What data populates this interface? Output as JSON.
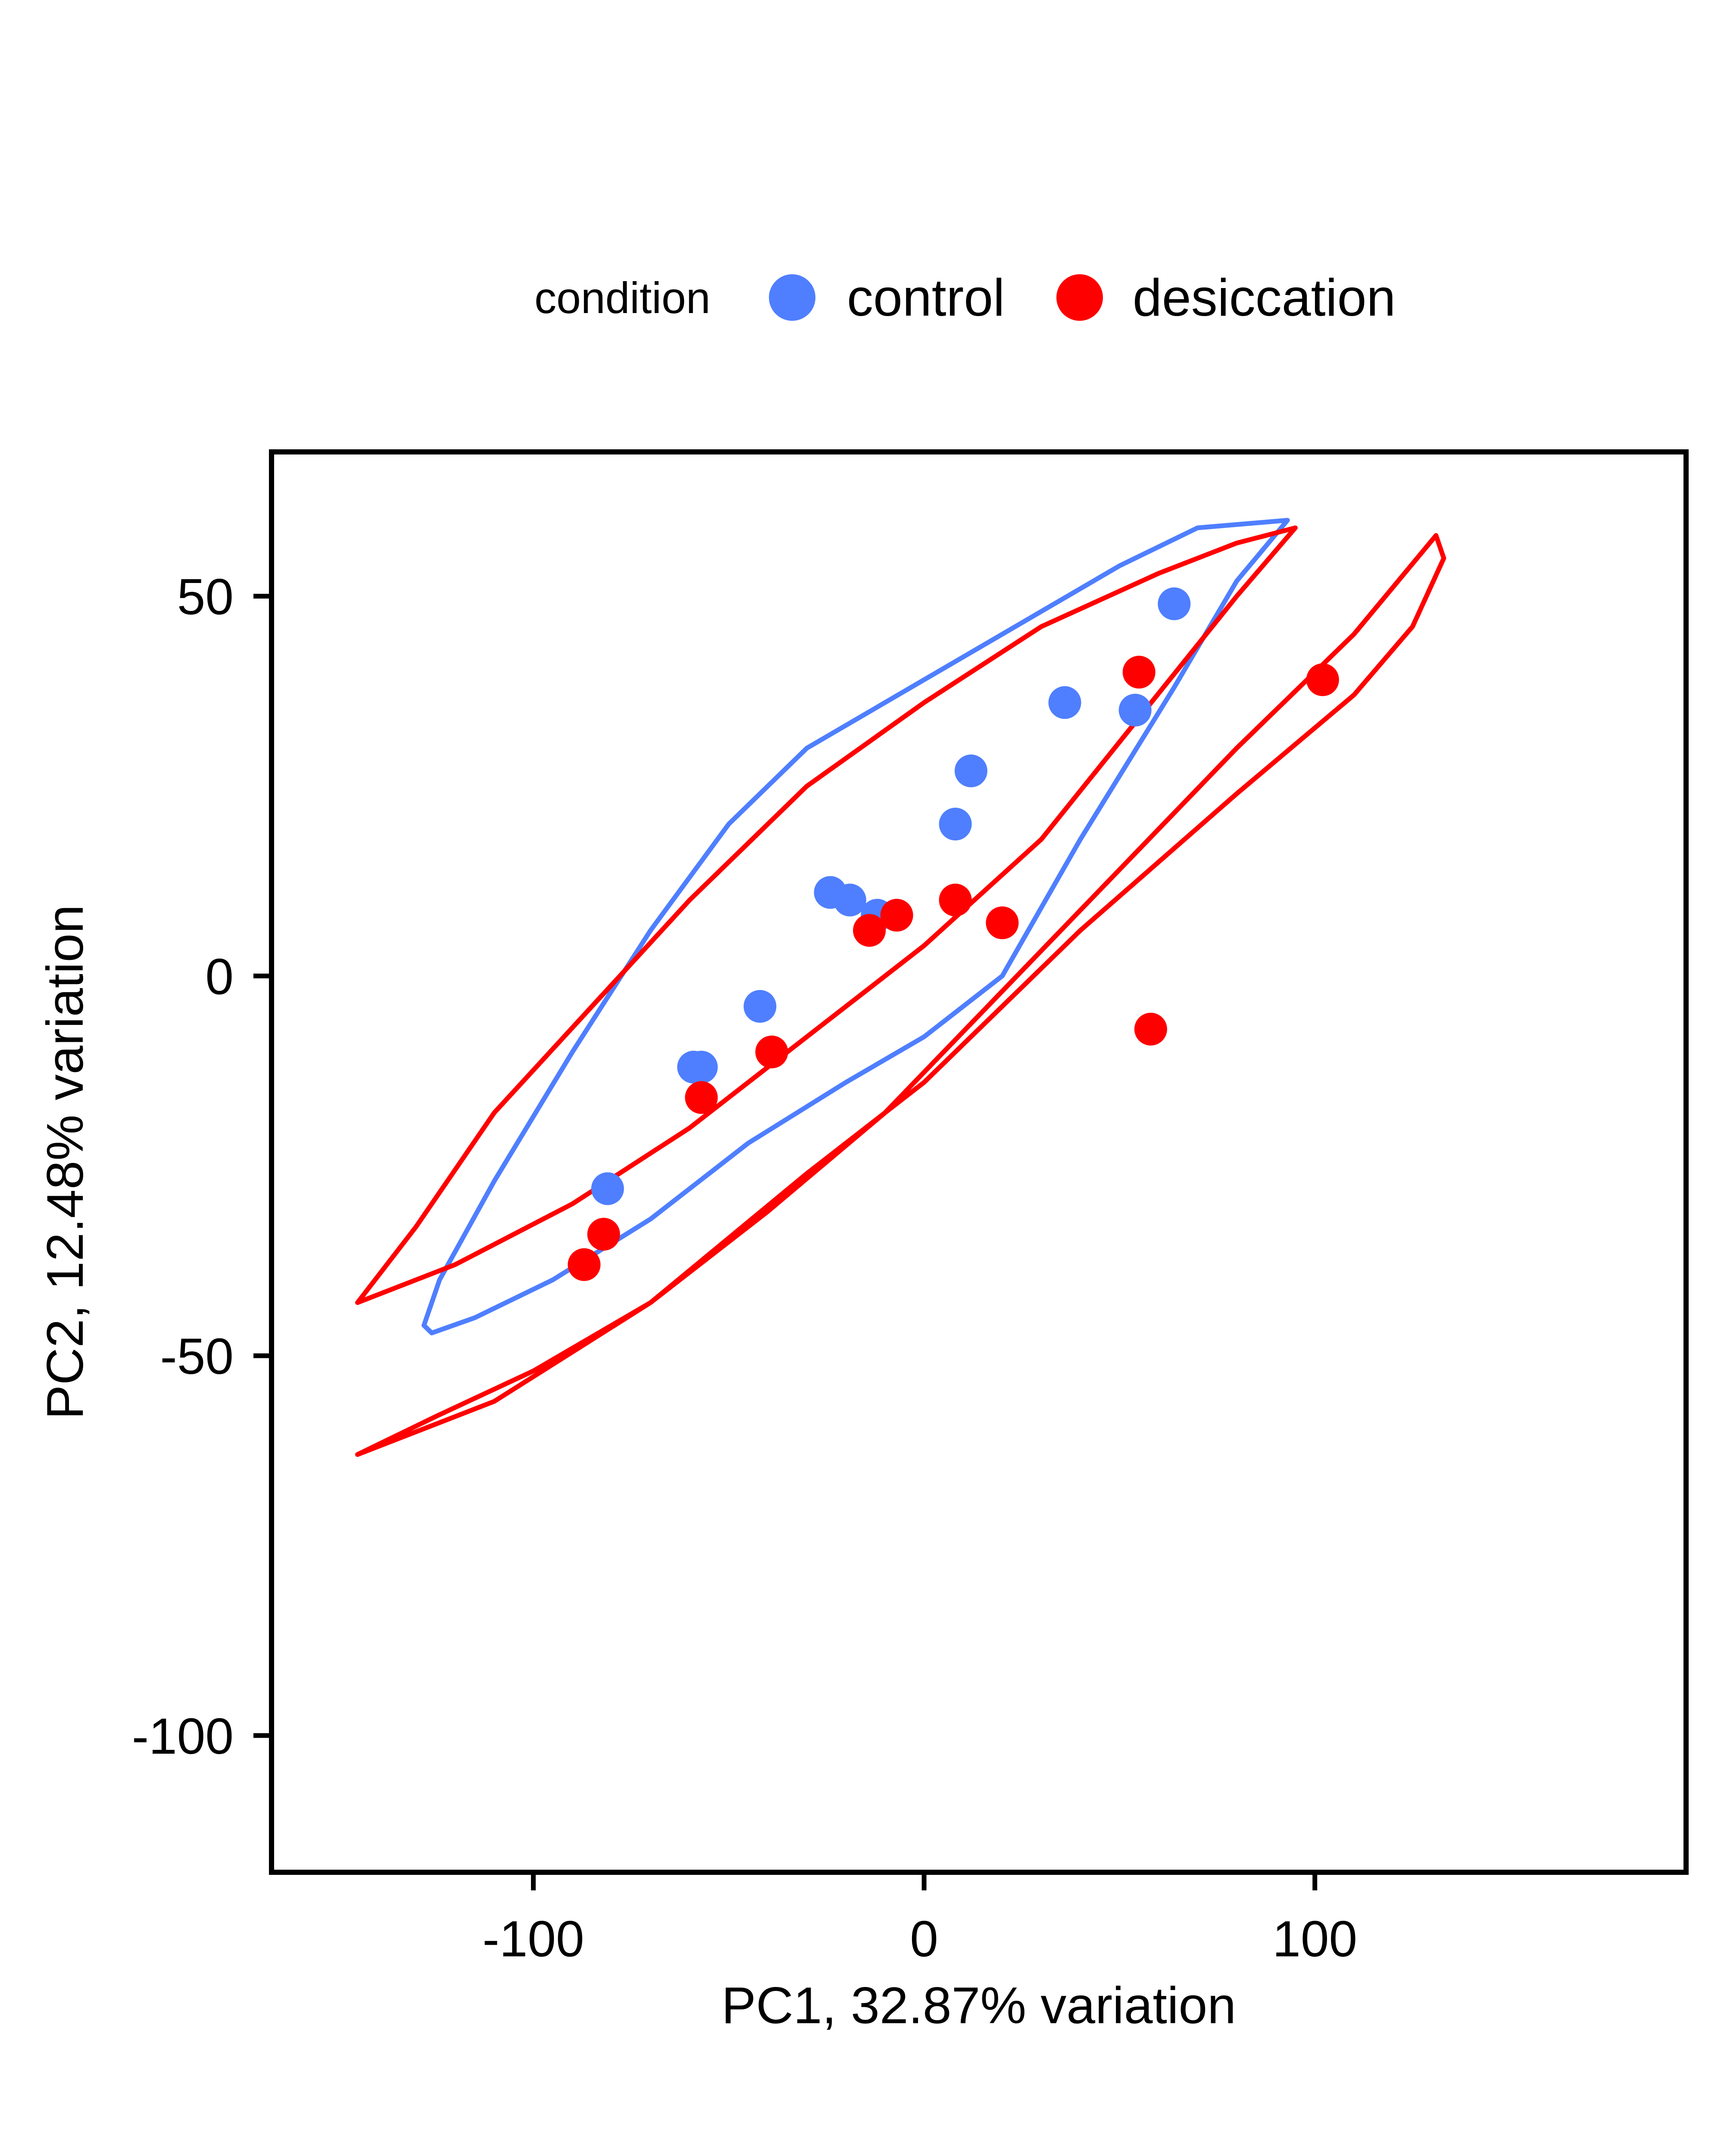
{
  "chart_data": {
    "type": "scatter",
    "title": "",
    "xlabel": "PC1, 32.87% variation",
    "ylabel": "PC2, 12.48% variation",
    "xlim": [
      -167,
      195
    ],
    "ylim": [
      -118,
      69
    ],
    "x_ticks": [
      {
        "value": -100,
        "label": "-100"
      },
      {
        "value": 0,
        "label": "0"
      },
      {
        "value": 100,
        "label": "100"
      }
    ],
    "y_ticks": [
      {
        "value": 50,
        "label": "50"
      },
      {
        "value": 0,
        "label": "0"
      },
      {
        "value": -50,
        "label": "-50"
      },
      {
        "value": -100,
        "label": "-100"
      }
    ],
    "grid": false,
    "legend": {
      "position": "top",
      "title": "condition",
      "entries": [
        {
          "key": "control",
          "label": "control",
          "color": "#4f7fff"
        },
        {
          "key": "desiccation",
          "label": "desiccation",
          "color": "#ff0000"
        }
      ]
    },
    "series": [
      {
        "name": "control",
        "color": "#4f7fff",
        "points": [
          [
            64,
            49
          ],
          [
            36,
            36
          ],
          [
            54,
            35
          ],
          [
            12,
            27
          ],
          [
            8,
            20
          ],
          [
            -24,
            11
          ],
          [
            -19,
            10
          ],
          [
            -12,
            8
          ],
          [
            -42,
            -4
          ],
          [
            -59,
            -12
          ],
          [
            -57,
            -12
          ],
          [
            -81,
            -28
          ]
        ]
      },
      {
        "name": "desiccation",
        "color": "#ff0000",
        "points": [
          [
            102,
            39
          ],
          [
            55,
            40
          ],
          [
            -7,
            8
          ],
          [
            -14,
            6
          ],
          [
            8,
            10
          ],
          [
            20,
            7
          ],
          [
            58,
            -7
          ],
          [
            -39,
            -10
          ],
          [
            -57,
            -16
          ],
          [
            -82,
            -34
          ],
          [
            -87,
            -38
          ]
        ]
      }
    ],
    "ellipses": [
      {
        "name": "control",
        "color": "#4f7fff",
        "points": [
          [
            -126,
            -47
          ],
          [
            -128,
            -46
          ],
          [
            -124,
            -40
          ],
          [
            -110,
            -27
          ],
          [
            -90,
            -10
          ],
          [
            -70,
            6
          ],
          [
            -50,
            20
          ],
          [
            -30,
            30
          ],
          [
            -10,
            36
          ],
          [
            10,
            42
          ],
          [
            30,
            48
          ],
          [
            50,
            54
          ],
          [
            70,
            59
          ],
          [
            93,
            60
          ],
          [
            80,
            52
          ],
          [
            64,
            38
          ],
          [
            40,
            18
          ],
          [
            20,
            0
          ],
          [
            0,
            -8
          ],
          [
            -20,
            -14
          ],
          [
            -45,
            -22
          ],
          [
            -70,
            -32
          ],
          [
            -95,
            -40
          ],
          [
            -115,
            -45
          ],
          [
            -126,
            -47
          ]
        ]
      },
      {
        "name": "desiccation",
        "color": "#ff0000",
        "points": [
          [
            -145,
            -43
          ],
          [
            -130,
            -33
          ],
          [
            -110,
            -18
          ],
          [
            -85,
            -4
          ],
          [
            -60,
            10
          ],
          [
            -30,
            25
          ],
          [
            0,
            36
          ],
          [
            30,
            46
          ],
          [
            60,
            53
          ],
          [
            80,
            57
          ],
          [
            95,
            59
          ],
          [
            80,
            50
          ],
          [
            55,
            34
          ],
          [
            30,
            18
          ],
          [
            0,
            4
          ],
          [
            -30,
            -8
          ],
          [
            -60,
            -20
          ],
          [
            -90,
            -30
          ],
          [
            -120,
            -38
          ],
          [
            -145,
            -43
          ]
        ]
      },
      {
        "name": "desiccation",
        "color": "#ff0000",
        "points": [
          [
            -145,
            -63
          ],
          [
            -110,
            -56
          ],
          [
            -70,
            -43
          ],
          [
            -30,
            -26
          ],
          [
            0,
            -14
          ],
          [
            40,
            6
          ],
          [
            80,
            24
          ],
          [
            110,
            37
          ],
          [
            125,
            46
          ],
          [
            133,
            55
          ],
          [
            131,
            58
          ],
          [
            110,
            45
          ],
          [
            80,
            30
          ],
          [
            50,
            14
          ],
          [
            20,
            -2
          ],
          [
            -10,
            -18
          ],
          [
            -40,
            -31
          ],
          [
            -70,
            -43
          ],
          [
            -100,
            -52
          ],
          [
            -125,
            -58
          ],
          [
            -145,
            -63
          ]
        ]
      }
    ]
  }
}
